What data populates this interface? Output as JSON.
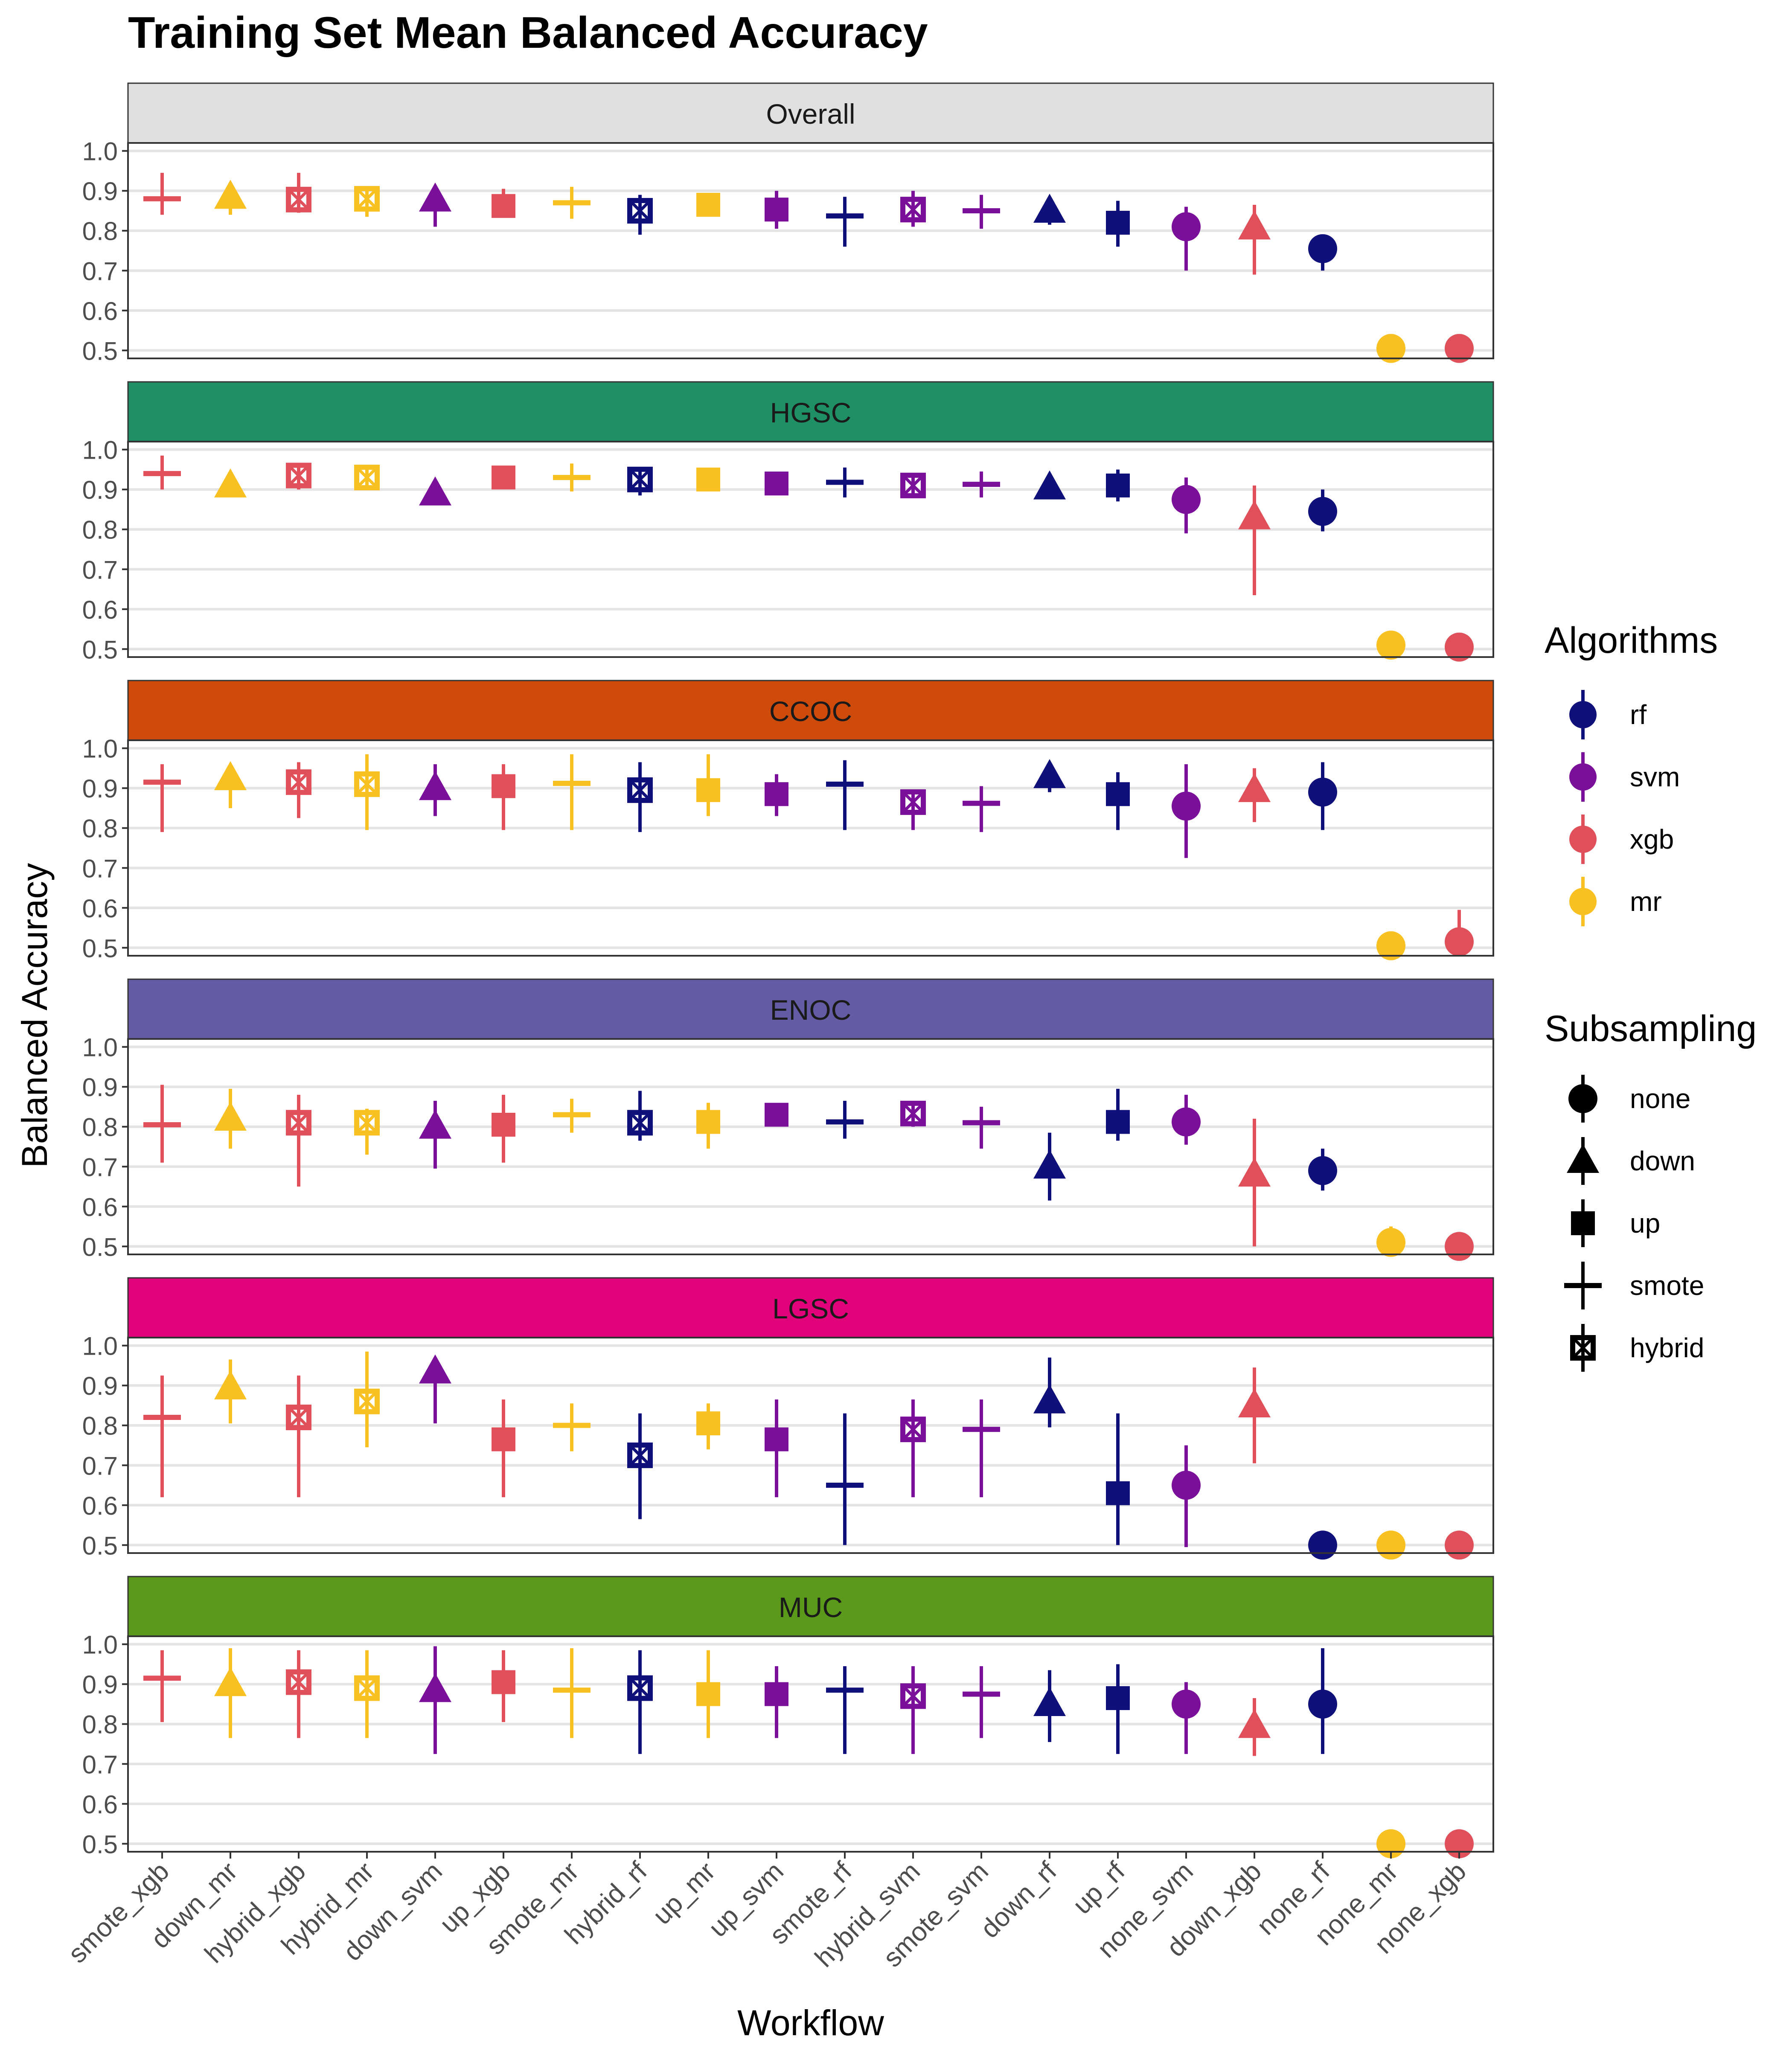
{
  "chart_data": {
    "type": "scatter",
    "title": "Training Set Mean Balanced Accuracy",
    "xlabel": "Workflow",
    "ylabel": "Balanced Accuracy",
    "ylim": [
      0.48,
      1.02
    ],
    "yticks": [
      0.5,
      0.6,
      0.7,
      0.8,
      0.9,
      1.0
    ],
    "ytick_labels": [
      "0.5",
      "0.6",
      "0.7",
      "0.8",
      "0.9",
      "1.0"
    ],
    "grid": "horizontal",
    "categories": [
      "smote_xgb",
      "down_mr",
      "hybrid_xgb",
      "hybrid_mr",
      "down_svm",
      "up_xgb",
      "smote_mr",
      "hybrid_rf",
      "up_mr",
      "up_svm",
      "smote_rf",
      "hybrid_svm",
      "smote_svm",
      "down_rf",
      "up_rf",
      "none_svm",
      "down_xgb",
      "none_rf",
      "none_mr",
      "none_xgb"
    ],
    "category_algorithm": [
      "xgb",
      "mr",
      "xgb",
      "mr",
      "svm",
      "xgb",
      "mr",
      "rf",
      "mr",
      "svm",
      "rf",
      "svm",
      "svm",
      "rf",
      "rf",
      "svm",
      "xgb",
      "rf",
      "mr",
      "xgb"
    ],
    "category_subsampling": [
      "smote",
      "down",
      "hybrid",
      "hybrid",
      "down",
      "up",
      "smote",
      "hybrid",
      "up",
      "up",
      "smote",
      "hybrid",
      "smote",
      "down",
      "up",
      "none",
      "down",
      "none",
      "none",
      "none"
    ],
    "algorithm_colors": {
      "rf": "#10107a",
      "svm": "#7a109a",
      "xgb": "#e0505a",
      "mr": "#f8c020"
    },
    "legend": {
      "position": "right",
      "algorithms": {
        "title": "Algorithms",
        "items": [
          "rf",
          "svm",
          "xgb",
          "mr"
        ]
      },
      "subsampling": {
        "title": "Subsampling",
        "items": [
          "none",
          "down",
          "up",
          "smote",
          "hybrid"
        ]
      }
    },
    "panels": [
      {
        "name": "Overall",
        "strip_color": "#e0e0e0",
        "values": [
          0.88,
          0.885,
          0.878,
          0.88,
          0.878,
          0.862,
          0.87,
          0.85,
          0.865,
          0.853,
          0.837,
          0.853,
          0.85,
          0.85,
          0.82,
          0.81,
          0.808,
          0.755,
          0.505,
          0.505
        ],
        "lower": [
          0.84,
          0.84,
          0.845,
          0.835,
          0.81,
          0.84,
          0.83,
          0.79,
          0.845,
          0.805,
          0.76,
          0.81,
          0.805,
          0.815,
          0.76,
          0.7,
          0.69,
          0.7,
          0.5,
          0.5
        ],
        "upper": [
          0.945,
          0.91,
          0.945,
          0.91,
          0.91,
          0.905,
          0.91,
          0.89,
          0.885,
          0.9,
          0.885,
          0.9,
          0.89,
          0.875,
          0.875,
          0.86,
          0.865,
          0.79,
          0.51,
          0.51
        ]
      },
      {
        "name": "HGSC",
        "strip_color": "#1f8f66",
        "values": [
          0.94,
          0.91,
          0.935,
          0.93,
          0.89,
          0.93,
          0.93,
          0.925,
          0.925,
          0.915,
          0.918,
          0.91,
          0.913,
          0.905,
          0.91,
          0.875,
          0.83,
          0.845,
          0.51,
          0.505
        ],
        "lower": [
          0.9,
          0.895,
          0.9,
          0.9,
          0.865,
          0.915,
          0.895,
          0.885,
          0.91,
          0.895,
          0.88,
          0.89,
          0.88,
          0.88,
          0.87,
          0.79,
          0.635,
          0.795,
          0.505,
          0.5
        ],
        "upper": [
          0.985,
          0.925,
          0.96,
          0.95,
          0.905,
          0.945,
          0.965,
          0.955,
          0.945,
          0.935,
          0.955,
          0.93,
          0.945,
          0.925,
          0.95,
          0.93,
          0.91,
          0.9,
          0.515,
          0.51
        ]
      },
      {
        "name": "CCOC",
        "strip_color": "#cf4b0c",
        "values": [
          0.915,
          0.925,
          0.915,
          0.91,
          0.9,
          0.905,
          0.912,
          0.895,
          0.895,
          0.885,
          0.91,
          0.865,
          0.862,
          0.93,
          0.885,
          0.855,
          0.895,
          0.89,
          0.505,
          0.515
        ],
        "lower": [
          0.79,
          0.85,
          0.825,
          0.795,
          0.83,
          0.795,
          0.795,
          0.79,
          0.83,
          0.83,
          0.795,
          0.795,
          0.79,
          0.89,
          0.795,
          0.725,
          0.815,
          0.795,
          0.5,
          0.505
        ],
        "upper": [
          0.96,
          0.96,
          0.965,
          0.985,
          0.96,
          0.96,
          0.985,
          0.965,
          0.985,
          0.935,
          0.97,
          0.89,
          0.905,
          0.95,
          0.94,
          0.96,
          0.95,
          0.965,
          0.51,
          0.595
        ]
      },
      {
        "name": "ENOC",
        "strip_color": "#635ba3",
        "values": [
          0.805,
          0.82,
          0.81,
          0.81,
          0.8,
          0.805,
          0.83,
          0.81,
          0.812,
          0.83,
          0.812,
          0.833,
          0.81,
          0.7,
          0.812,
          0.812,
          0.68,
          0.69,
          0.51,
          0.5
        ],
        "lower": [
          0.71,
          0.745,
          0.65,
          0.73,
          0.695,
          0.71,
          0.785,
          0.765,
          0.745,
          0.815,
          0.77,
          0.8,
          0.745,
          0.615,
          0.765,
          0.755,
          0.5,
          0.64,
          0.49,
          0.495
        ],
        "upper": [
          0.905,
          0.895,
          0.88,
          0.845,
          0.865,
          0.88,
          0.87,
          0.89,
          0.86,
          0.845,
          0.865,
          0.865,
          0.85,
          0.785,
          0.895,
          0.88,
          0.82,
          0.745,
          0.55,
          0.505
        ]
      },
      {
        "name": "LGSC",
        "strip_color": "#e0037a",
        "values": [
          0.82,
          0.895,
          0.82,
          0.86,
          0.935,
          0.765,
          0.8,
          0.725,
          0.805,
          0.765,
          0.65,
          0.79,
          0.79,
          0.86,
          0.63,
          0.65,
          0.85,
          0.5,
          0.5,
          0.5
        ],
        "lower": [
          0.62,
          0.805,
          0.62,
          0.745,
          0.805,
          0.62,
          0.735,
          0.565,
          0.74,
          0.62,
          0.5,
          0.62,
          0.62,
          0.795,
          0.5,
          0.495,
          0.705,
          0.495,
          0.495,
          0.495
        ],
        "upper": [
          0.925,
          0.965,
          0.925,
          0.985,
          0.96,
          0.865,
          0.855,
          0.83,
          0.855,
          0.865,
          0.83,
          0.865,
          0.865,
          0.97,
          0.83,
          0.75,
          0.945,
          0.505,
          0.505,
          0.505
        ]
      },
      {
        "name": "MUC",
        "strip_color": "#5a991a",
        "values": [
          0.915,
          0.9,
          0.905,
          0.89,
          0.885,
          0.905,
          0.885,
          0.89,
          0.875,
          0.875,
          0.885,
          0.87,
          0.875,
          0.85,
          0.865,
          0.85,
          0.795,
          0.85,
          0.5,
          0.5
        ],
        "lower": [
          0.805,
          0.765,
          0.765,
          0.765,
          0.725,
          0.805,
          0.765,
          0.725,
          0.765,
          0.765,
          0.725,
          0.725,
          0.765,
          0.755,
          0.725,
          0.725,
          0.72,
          0.725,
          0.495,
          0.495
        ],
        "upper": [
          0.985,
          0.99,
          0.985,
          0.985,
          0.995,
          0.985,
          0.99,
          0.985,
          0.985,
          0.945,
          0.945,
          0.945,
          0.945,
          0.935,
          0.95,
          0.905,
          0.865,
          0.99,
          0.505,
          0.505
        ]
      }
    ]
  }
}
